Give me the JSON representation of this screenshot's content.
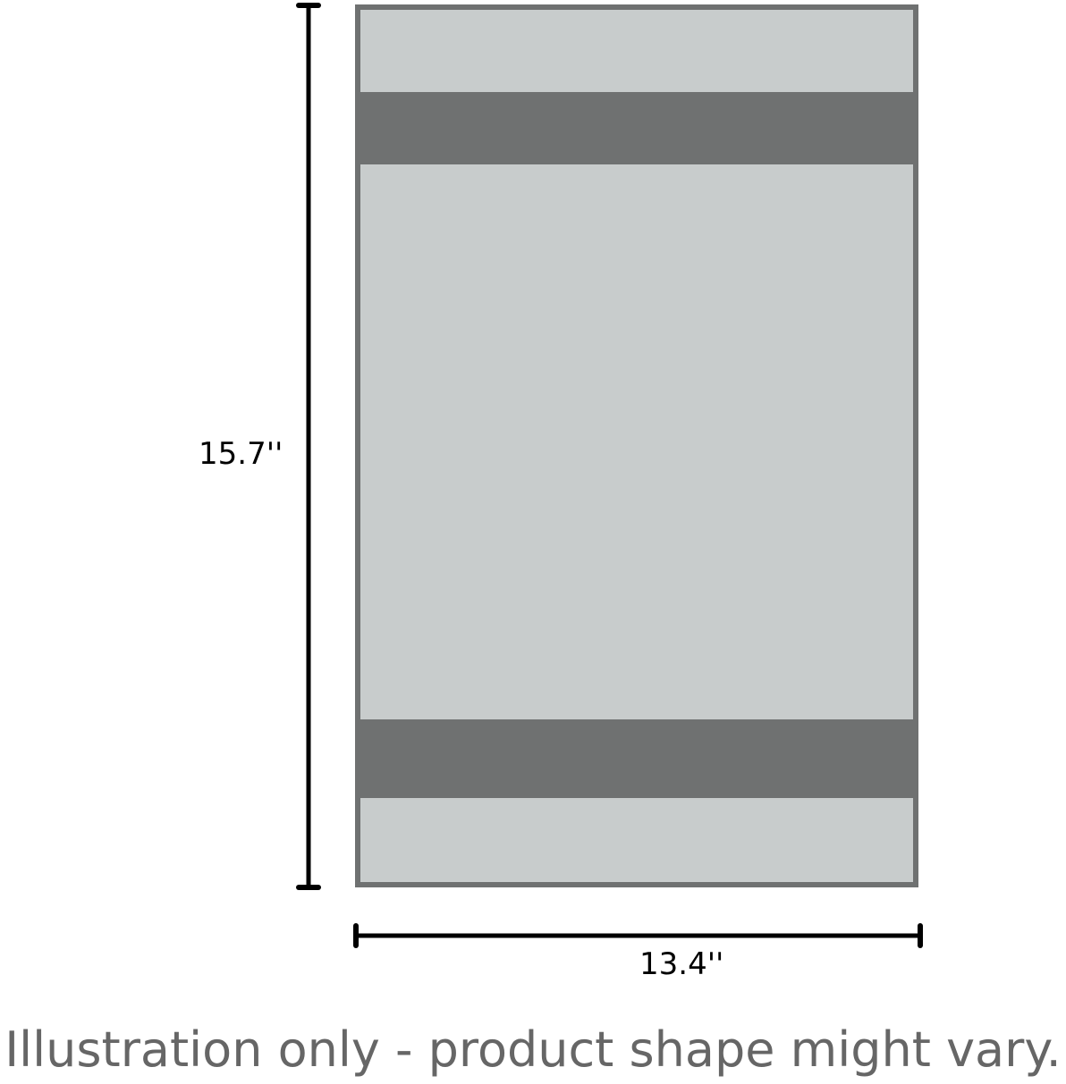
{
  "dimensions": {
    "height_label": "15.7''",
    "width_label": "13.4''"
  },
  "caption": "Illustration only - product shape might vary.",
  "colors": {
    "panel_fill": "#c8cccc",
    "panel_border": "#6f7171",
    "band_fill": "#6f7171",
    "dimension_line": "#000000"
  }
}
